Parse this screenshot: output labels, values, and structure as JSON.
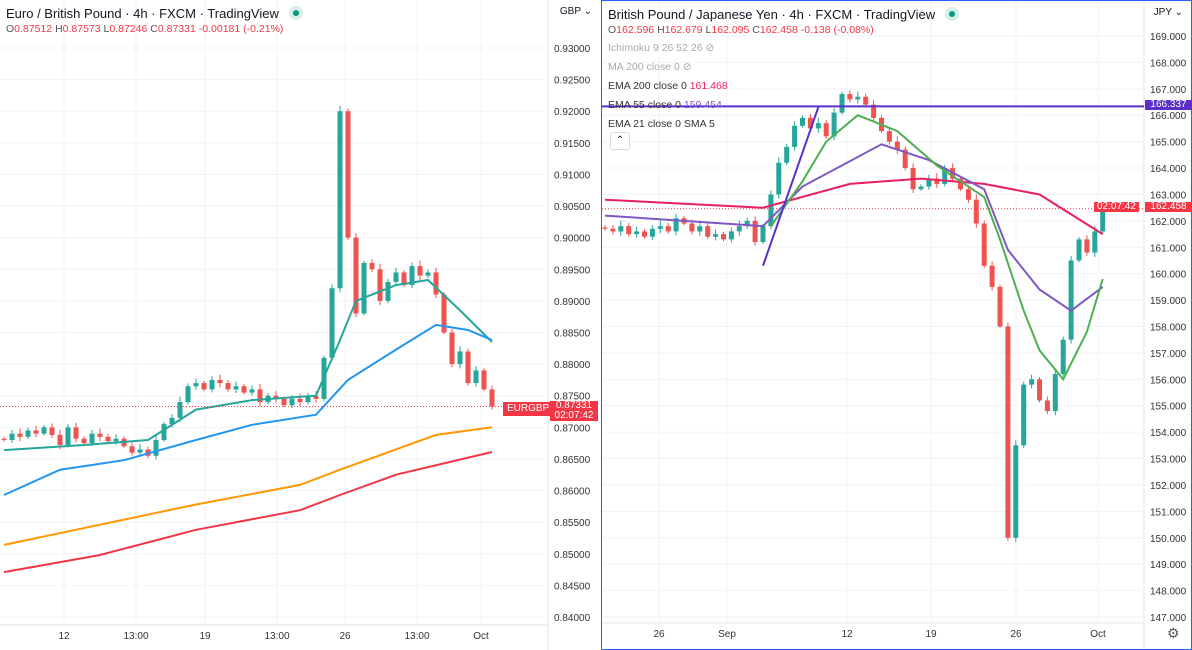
{
  "left": {
    "title": "Euro / British Pound · 4h · FXCM · TradingView",
    "ohlc": {
      "o": "0.87512",
      "h": "0.87573",
      "l": "0.87246",
      "c": "0.87331",
      "chg": "-0.00181 (-0.21%)"
    },
    "currency": "GBP",
    "symbol_tag": "EURGBP",
    "last_price": "0.87331",
    "countdown": "02:07:42",
    "yticks": [
      "0.93000",
      "0.92500",
      "0.92000",
      "0.91500",
      "0.91000",
      "0.90500",
      "0.90000",
      "0.89500",
      "0.89000",
      "0.88500",
      "0.88000",
      "0.87500",
      "0.87000",
      "0.86500",
      "0.86000",
      "0.85500",
      "0.85000",
      "0.84500",
      "0.84000"
    ],
    "xticks": [
      "12",
      "13:00",
      "19",
      "13:00",
      "26",
      "13:00",
      "Oct"
    ]
  },
  "right": {
    "title": "British Pound / Japanese Yen · 4h · FXCM · TradingView",
    "ohlc": {
      "o": "162.596",
      "h": "162.679",
      "l": "162.095",
      "c": "162.458",
      "chg": "-0.138 (-0.08%)"
    },
    "currency": "JPY",
    "indicators": [
      {
        "label": "Ichimoku 9 26 52 26",
        "value": "",
        "hidden": true
      },
      {
        "label": "MA 200 close 0",
        "value": "",
        "hidden": true
      },
      {
        "label": "EMA 200 close 0",
        "value": "161.468",
        "color": "#e91e63"
      },
      {
        "label": "EMA 55 close 0",
        "value": "159.454",
        "color": "#7e57c2"
      },
      {
        "label": "EMA 21 close 0 SMA 5",
        "value": ""
      }
    ],
    "hline_price": "166.337",
    "last_price": "162.458",
    "countdown": "02:07:42",
    "yticks": [
      "169.000",
      "168.000",
      "167.000",
      "166.000",
      "165.000",
      "164.000",
      "163.000",
      "162.000",
      "161.000",
      "160.000",
      "159.000",
      "158.000",
      "157.000",
      "156.000",
      "155.000",
      "154.000",
      "153.000",
      "152.000",
      "151.000",
      "150.000",
      "149.000",
      "148.000",
      "147.000"
    ],
    "xticks": [
      "26",
      "Sep",
      "12",
      "19",
      "26",
      "Oct"
    ]
  },
  "colors": {
    "up": "#26a69a",
    "down": "#ef5350",
    "teal": "#26a69a",
    "blue": "#2196f3",
    "orange": "#ff9800",
    "red": "#f23645",
    "pink": "#e91e63",
    "purple": "#7e57c2",
    "green": "#4caf50",
    "hline": "#5b2fc9"
  },
  "chart_data": [
    {
      "type": "candlestick",
      "symbol": "EURGBP",
      "ylim": [
        0.84,
        0.93
      ],
      "closes": [
        0.868,
        0.869,
        0.8685,
        0.8695,
        0.869,
        0.87,
        0.8688,
        0.8672,
        0.87,
        0.8682,
        0.8675,
        0.869,
        0.8685,
        0.8678,
        0.8682,
        0.867,
        0.866,
        0.8665,
        0.8655,
        0.868,
        0.8705,
        0.8715,
        0.874,
        0.8765,
        0.877,
        0.876,
        0.8775,
        0.877,
        0.876,
        0.8765,
        0.8755,
        0.876,
        0.874,
        0.875,
        0.8745,
        0.8735,
        0.8745,
        0.874,
        0.875,
        0.8745,
        0.881,
        0.892,
        0.92,
        0.9,
        0.888,
        0.896,
        0.895,
        0.89,
        0.893,
        0.8945,
        0.8925,
        0.8955,
        0.894,
        0.8945,
        0.891,
        0.885,
        0.88,
        0.882,
        0.877,
        0.879,
        0.876,
        0.8733
      ],
      "lines": [
        {
          "color": "teal",
          "points": [
            [
              0,
              0.8664
            ],
            [
              10,
              0.8672
            ],
            [
              18,
              0.868
            ],
            [
              24,
              0.8728
            ],
            [
              31,
              0.8743
            ],
            [
              39,
              0.875
            ],
            [
              42,
              0.8838
            ],
            [
              44,
              0.89
            ],
            [
              49,
              0.8925
            ],
            [
              53,
              0.8933
            ],
            [
              57,
              0.8885
            ],
            [
              61,
              0.8835
            ]
          ]
        },
        {
          "color": "blue",
          "points": [
            [
              0,
              0.8593
            ],
            [
              7,
              0.8633
            ],
            [
              15,
              0.8648
            ],
            [
              24,
              0.868
            ],
            [
              31,
              0.8704
            ],
            [
              39,
              0.872
            ],
            [
              43,
              0.8775
            ],
            [
              49,
              0.8823
            ],
            [
              54,
              0.8862
            ],
            [
              58,
              0.8854
            ],
            [
              61,
              0.8838
            ]
          ]
        },
        {
          "color": "orange",
          "points": [
            [
              0,
              0.8514
            ],
            [
              12,
              0.8546
            ],
            [
              24,
              0.8578
            ],
            [
              37,
              0.8609
            ],
            [
              42,
              0.8633
            ],
            [
              47,
              0.8656
            ],
            [
              54,
              0.8688
            ],
            [
              61,
              0.87
            ]
          ]
        },
        {
          "color": "red",
          "points": [
            [
              0,
              0.8471
            ],
            [
              12,
              0.8498
            ],
            [
              24,
              0.8538
            ],
            [
              37,
              0.8569
            ],
            [
              42,
              0.8593
            ],
            [
              49,
              0.8625
            ],
            [
              61,
              0.8661
            ]
          ]
        }
      ]
    },
    {
      "type": "candlestick",
      "symbol": "GBPJPY",
      "ylim": [
        147,
        169
      ],
      "closes": [
        161.7,
        161.6,
        161.8,
        161.5,
        161.6,
        161.4,
        161.7,
        161.8,
        161.6,
        162.1,
        161.9,
        161.6,
        161.8,
        161.4,
        161.5,
        161.3,
        161.6,
        161.8,
        162.0,
        161.2,
        161.8,
        163.0,
        164.2,
        164.8,
        165.6,
        165.9,
        165.5,
        165.7,
        165.2,
        166.1,
        166.8,
        166.6,
        166.7,
        166.4,
        165.9,
        165.4,
        165.0,
        164.7,
        164.0,
        163.2,
        163.3,
        163.6,
        163.4,
        164.0,
        163.6,
        163.2,
        162.8,
        161.9,
        160.3,
        159.5,
        158.0,
        150.0,
        153.5,
        155.8,
        156.0,
        155.2,
        154.8,
        156.2,
        157.5,
        160.5,
        161.3,
        160.8,
        161.6,
        162.458
      ],
      "lines": [
        {
          "color": "pink",
          "points": [
            [
              0,
              162.8
            ],
            [
              20,
              162.5
            ],
            [
              31,
              163.4
            ],
            [
              40,
              163.6
            ],
            [
              48,
              163.4
            ],
            [
              55,
              163.0
            ],
            [
              63,
              161.5
            ]
          ]
        },
        {
          "color": "purple",
          "points": [
            [
              0,
              162.2
            ],
            [
              20,
              161.8
            ],
            [
              25,
              163.3
            ],
            [
              35,
              164.9
            ],
            [
              41,
              164.3
            ],
            [
              48,
              163.2
            ],
            [
              51,
              160.9
            ],
            [
              55,
              159.4
            ],
            [
              59,
              158.6
            ],
            [
              63,
              159.5
            ]
          ]
        },
        {
          "color": "green",
          "points": [
            [
              21,
              161.8
            ],
            [
              25,
              163.5
            ],
            [
              28,
              165.0
            ],
            [
              32,
              166.0
            ],
            [
              37,
              165.4
            ],
            [
              42,
              164.1
            ],
            [
              48,
              162.9
            ],
            [
              50,
              161.3
            ],
            [
              53,
              158.6
            ],
            [
              55,
              157.1
            ],
            [
              58,
              156.0
            ],
            [
              61,
              157.8
            ],
            [
              63,
              159.8
            ]
          ]
        }
      ],
      "trendline": [
        [
          20,
          160.3
        ],
        [
          27,
          166.3
        ]
      ]
    }
  ]
}
